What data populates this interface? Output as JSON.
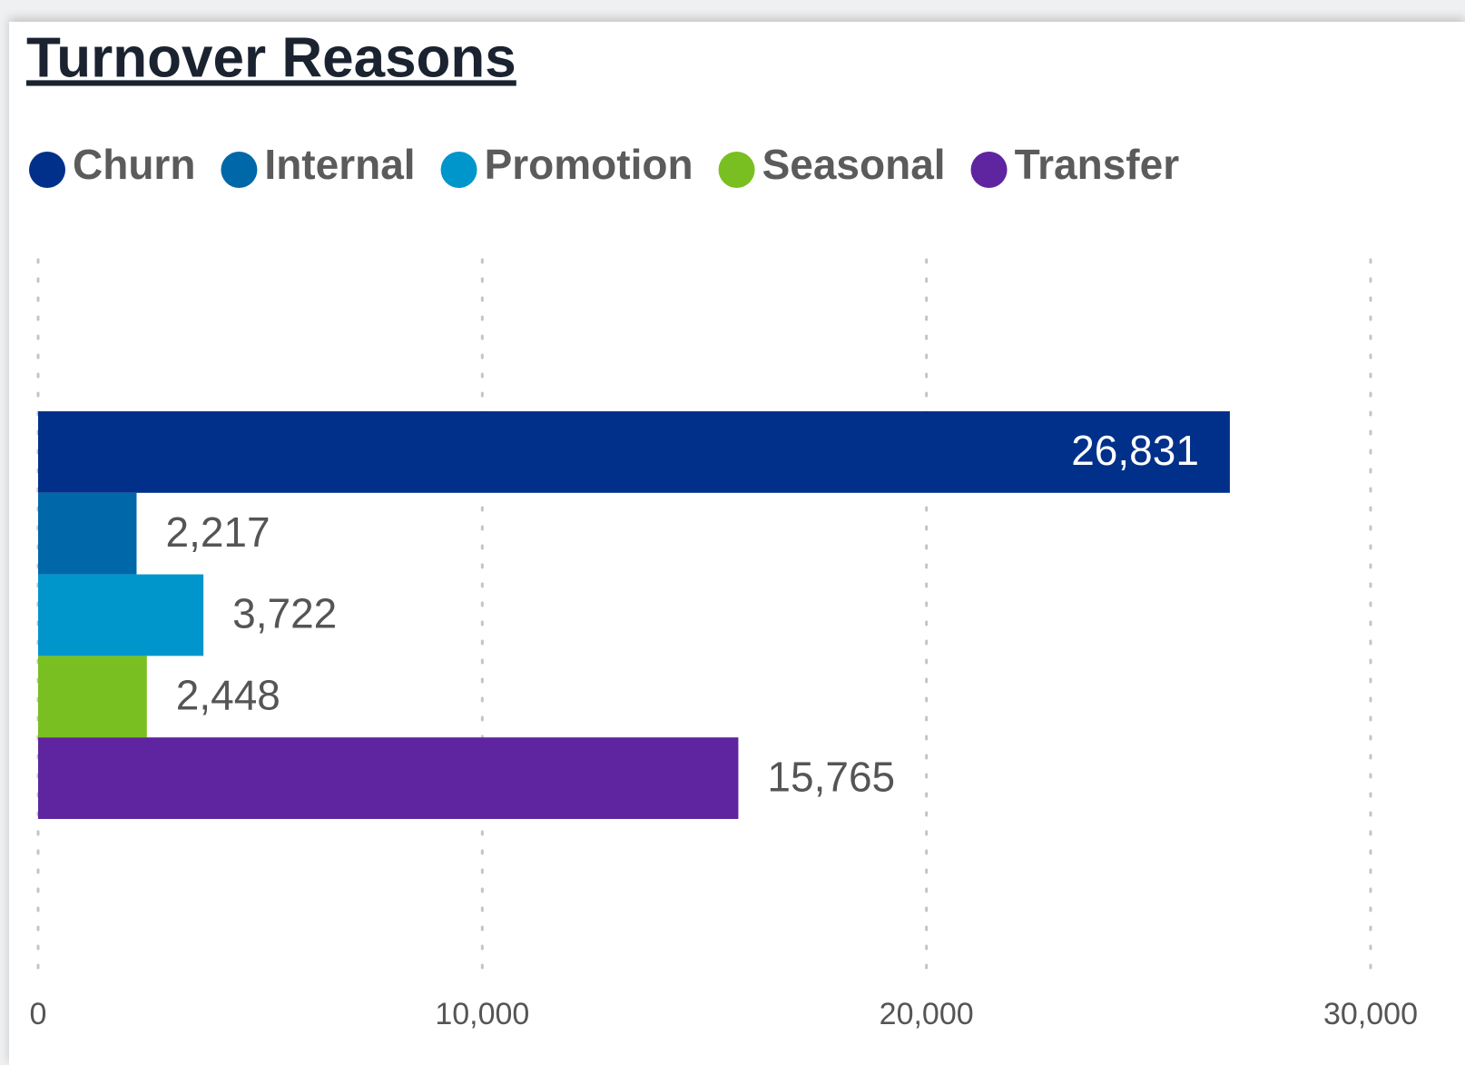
{
  "chart_data": {
    "type": "hbar",
    "title": "Turnover Reasons",
    "categories": [
      null
    ],
    "series": [
      {
        "name": "Churn",
        "color": "#00308a",
        "values": [
          26831
        ],
        "value_labels": [
          "26,831"
        ]
      },
      {
        "name": "Internal",
        "color": "#0068a8",
        "values": [
          2217
        ],
        "value_labels": [
          "2,217"
        ]
      },
      {
        "name": "Promotion",
        "color": "#0096cc",
        "values": [
          3722
        ],
        "value_labels": [
          "3,722"
        ]
      },
      {
        "name": "Seasonal",
        "color": "#7abf22",
        "values": [
          2448
        ],
        "value_labels": [
          "2,448"
        ]
      },
      {
        "name": "Transfer",
        "color": "#5f249f",
        "values": [
          15765
        ],
        "value_labels": [
          "15,765"
        ]
      }
    ],
    "xlim": [
      0,
      30000
    ],
    "xticks": [
      0,
      {
        "value": 10000,
        "label": "10,000"
      },
      {
        "value": 20000,
        "label": "20,000"
      },
      {
        "value": 30000,
        "label": "30,000"
      }
    ],
    "grid": true,
    "legend": "top-left"
  }
}
